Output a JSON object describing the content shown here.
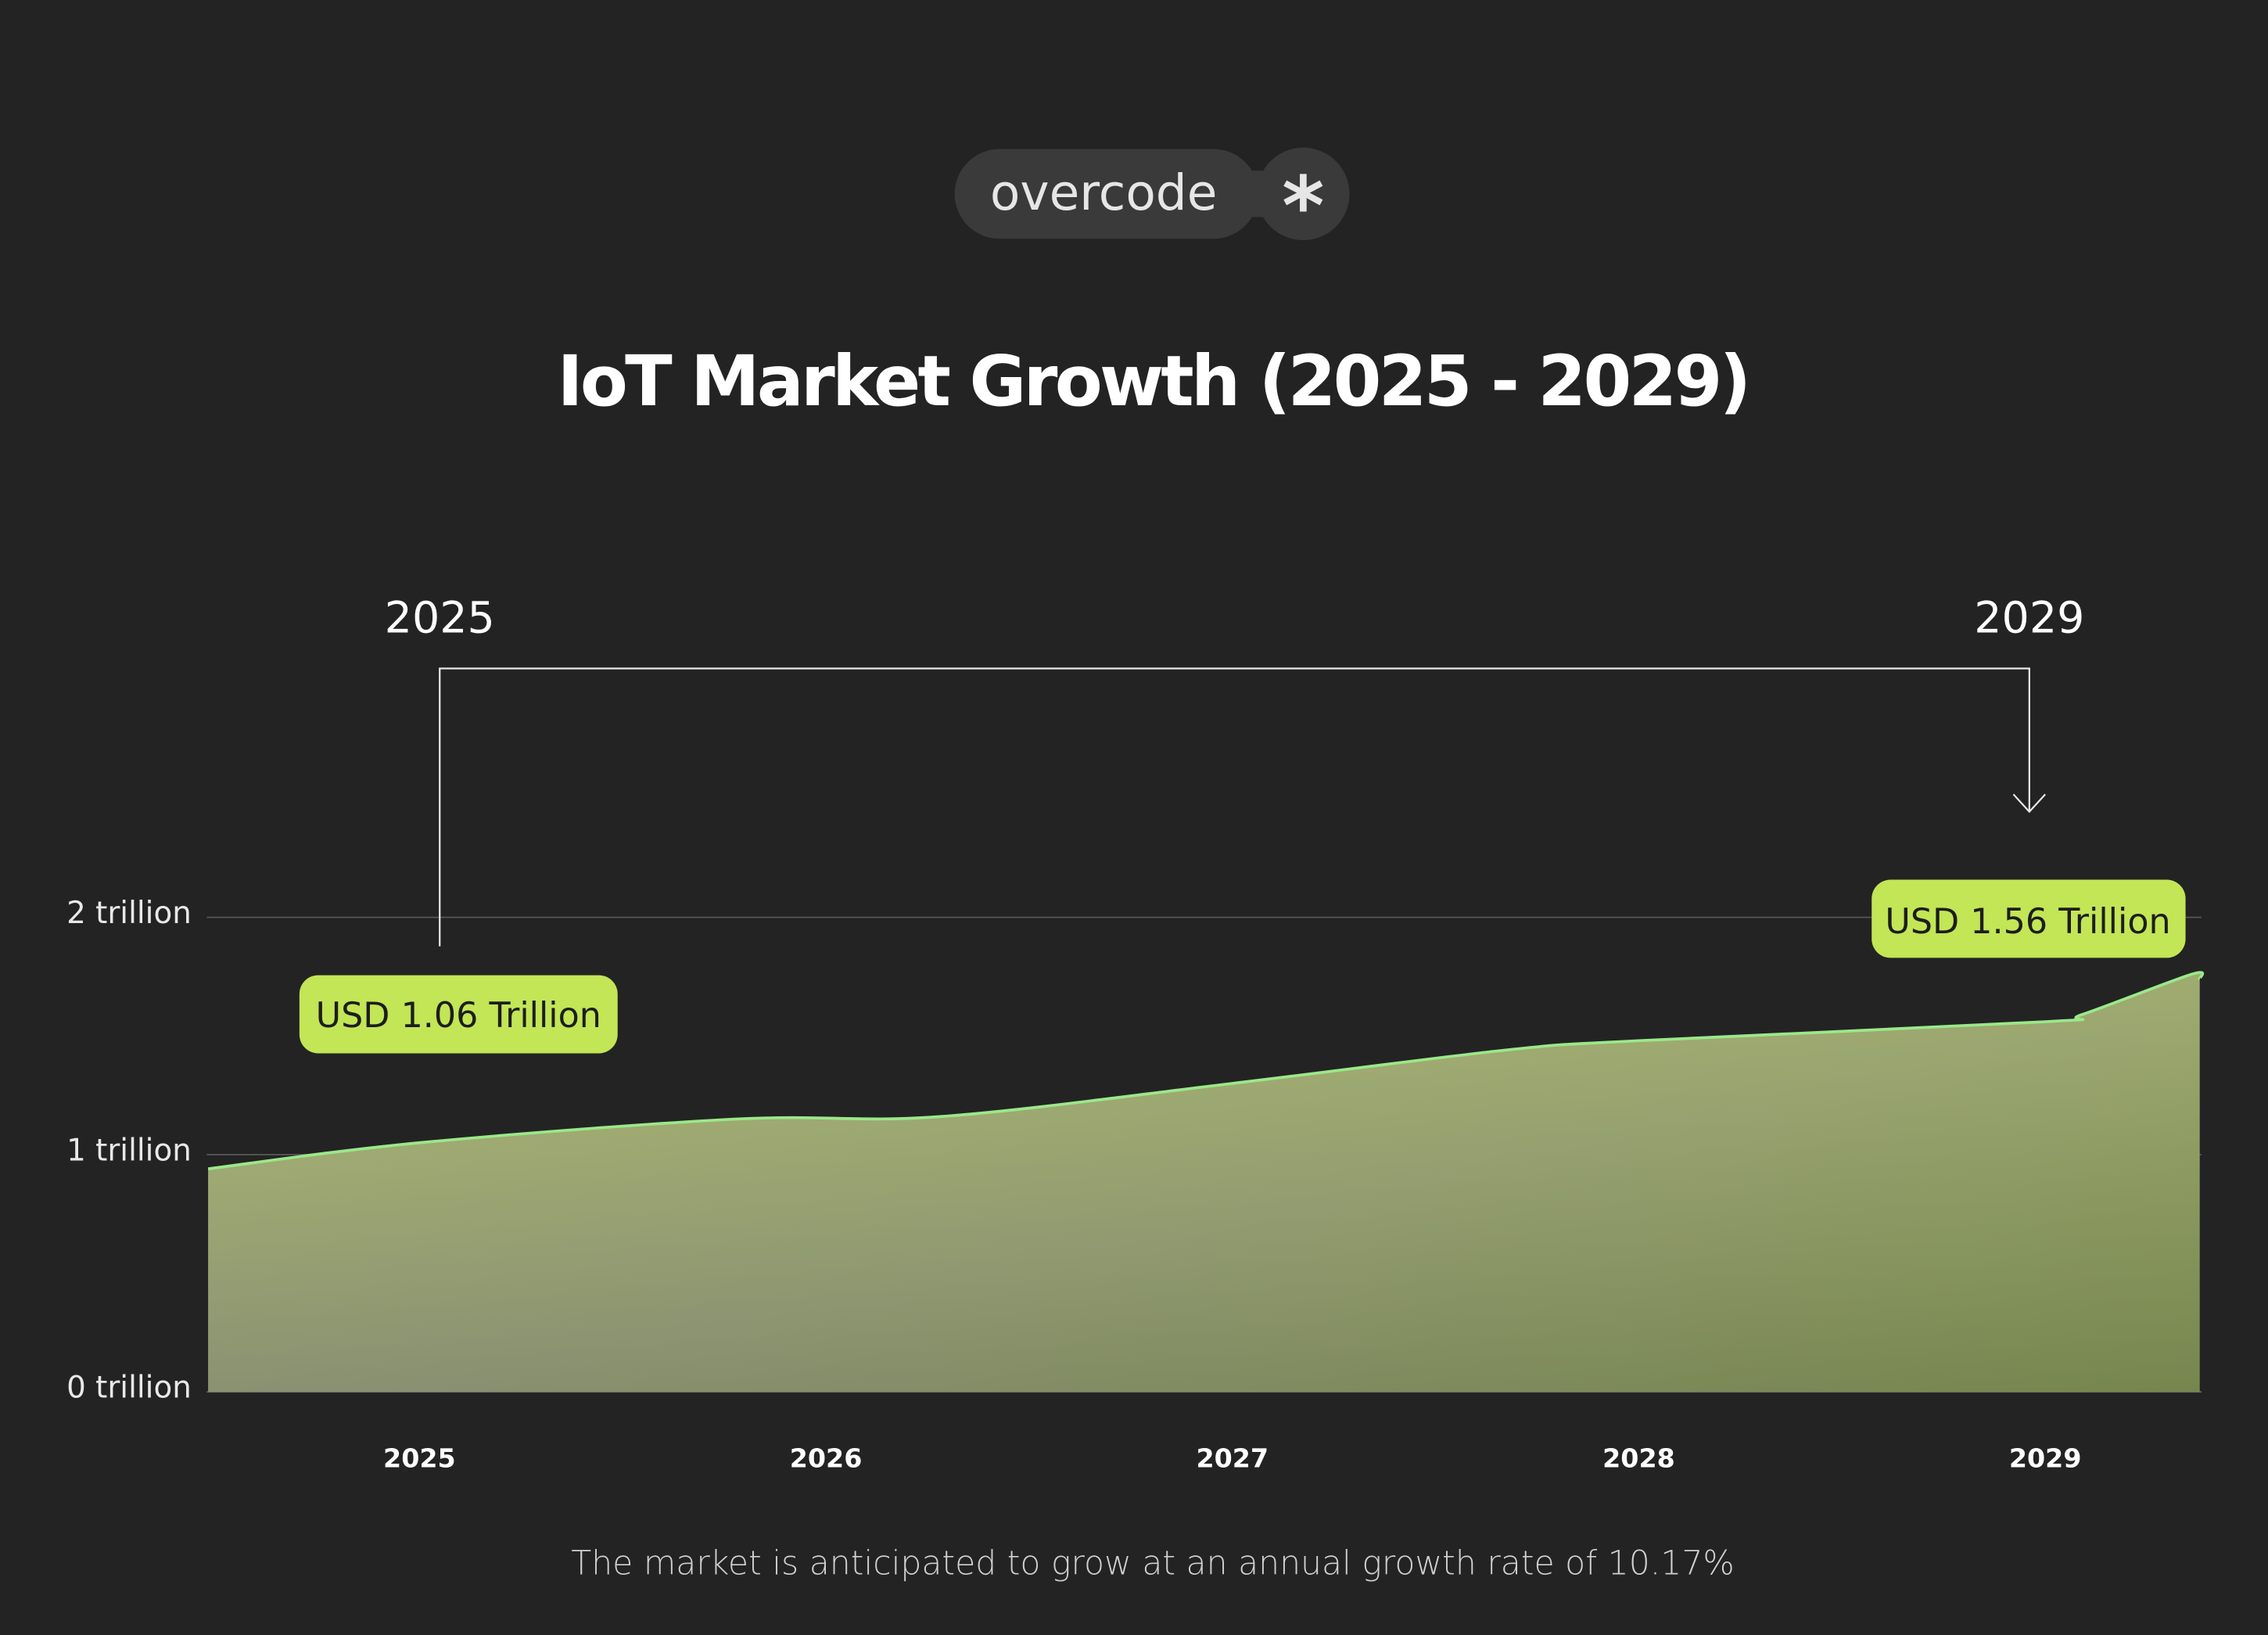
{
  "logo": {
    "text": "overcode",
    "symbol": "*"
  },
  "chart_data": {
    "type": "area",
    "title": "IoT Market Growth (2025 - 2029)",
    "subtitle": "The market is anticipated to grow at an annual growth rate of 10.17%",
    "xlabel": "",
    "ylabel": "",
    "x_ticks": [
      "2025",
      "2026",
      "2027",
      "2028",
      "2029"
    ],
    "y_ticks": [
      "0 trillion",
      "1 trillion",
      "2 trillion"
    ],
    "ylim": [
      0,
      2
    ],
    "xlim": [
      2024.48,
      2029.38
    ],
    "grid": true,
    "unit": "USD trillion",
    "series": [
      {
        "x": [
          2024.48,
          2025.0,
          2025.78,
          2026.28,
          2027.0,
          2027.67,
          2028.0,
          2029.0,
          2029.09,
          2029.36,
          2029.38
        ],
        "values": [
          0.94,
          1.05,
          1.15,
          1.16,
          1.3,
          1.44,
          1.48,
          1.56,
          1.59,
          1.76,
          1.74
        ]
      }
    ],
    "annotations": [
      {
        "year_label": "2025",
        "value_label": "USD 1.06 Trillion",
        "x": 2025.05
      },
      {
        "year_label": "2029",
        "value_label": "USD 1.56 Trillion",
        "x": 2028.97
      }
    ],
    "colors": {
      "background": "#232323",
      "line": "#9be88a",
      "fill_top": "#b5c46e",
      "fill_bottom": "#7f8470",
      "label_bg": "#c2e656",
      "text": "#ffffff"
    }
  }
}
